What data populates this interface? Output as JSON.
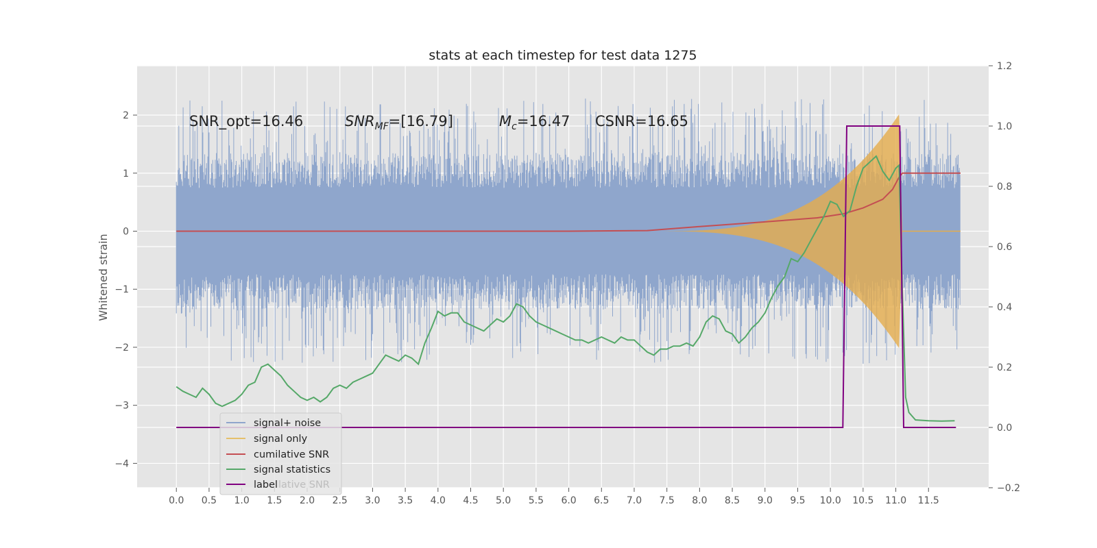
{
  "chart_data": {
    "type": "line",
    "title": "stats at each timestep for test data 1275",
    "xlabel": "",
    "ylabel": "Whitened strain",
    "y2label": "",
    "xlim": [
      -0.6,
      12.42
    ],
    "ylim": [
      -4.42,
      2.85
    ],
    "y2lim": [
      -0.2,
      1.2
    ],
    "x_ticks": [
      0.0,
      0.5,
      1.0,
      1.5,
      2.0,
      2.5,
      3.0,
      3.5,
      4.0,
      4.5,
      5.0,
      5.5,
      6.0,
      6.5,
      7.0,
      7.5,
      8.0,
      8.5,
      9.0,
      9.5,
      10.0,
      10.5,
      11.0,
      11.5
    ],
    "x_tick_labels": [
      "0.0",
      "0.5",
      "1.0",
      "1.5",
      "2.0",
      "2.5",
      "3.0",
      "3.5",
      "4.0",
      "4.5",
      "5.0",
      "5.5",
      "6.0",
      "6.5",
      "7.0",
      "7.5",
      "8.0",
      "8.5",
      "9.0",
      "9.5",
      "10.0",
      "10.5",
      "11.0",
      "11.5"
    ],
    "y_ticks": [
      2,
      1,
      0,
      -1,
      -2,
      -3,
      -4
    ],
    "y_tick_labels": [
      "2",
      "1",
      "0",
      "−1",
      "−2",
      "−3",
      "−4"
    ],
    "y2_ticks": [
      1.2,
      1.0,
      0.8,
      0.6,
      0.4,
      0.2,
      0.0,
      -0.2
    ],
    "y2_tick_labels": [
      "1.2",
      "1.0",
      "0.8",
      "0.6",
      "0.4",
      "0.2",
      "0.0",
      "−0.2"
    ],
    "grid": true,
    "legend_position": "lower-left",
    "annotations": {
      "snr_opt": "SNR_opt=16.46",
      "snr_mf_main": "SNR",
      "snr_mf_sub": "MF",
      "snr_mf_value": "=[16.79]",
      "mc_main": "M",
      "mc_sub": "c",
      "mc_value": "=16.47",
      "csnr": "CSNR=16.65"
    },
    "legend_entries": [
      "signal+ noise",
      "signal only",
      "cumilative SNR",
      "signal statistics",
      "label"
    ],
    "legend_ghost_text": "lative SNR",
    "noise": {
      "start": 0.0,
      "end": 11.99,
      "base_amp": 1.35,
      "spike_amp": 2.2,
      "color": "#8fa6cc"
    },
    "signal_only": {
      "start": 7.2,
      "end": 11.1,
      "peak_amp": 2.1,
      "color": "#e5ac4c"
    },
    "series": [
      {
        "name": "cumilative SNR",
        "axis": "left",
        "color": "#c44e52",
        "x": [
          0.0,
          6.0,
          7.2,
          8.0,
          9.0,
          9.8,
          10.2,
          10.5,
          10.8,
          10.95,
          11.05,
          11.1,
          11.5,
          11.99
        ],
        "y": [
          0.0,
          0.0,
          0.01,
          0.08,
          0.16,
          0.23,
          0.3,
          0.4,
          0.55,
          0.72,
          0.93,
          1.0,
          1.0,
          1.0
        ]
      },
      {
        "name": "signal statistics",
        "axis": "right",
        "color": "#55a868",
        "x": [
          0.0,
          0.1,
          0.2,
          0.3,
          0.4,
          0.5,
          0.6,
          0.7,
          0.8,
          0.9,
          1.0,
          1.1,
          1.2,
          1.3,
          1.4,
          1.5,
          1.6,
          1.7,
          1.8,
          1.9,
          2.0,
          2.1,
          2.2,
          2.3,
          2.4,
          2.5,
          2.6,
          2.7,
          2.8,
          2.9,
          3.0,
          3.1,
          3.2,
          3.3,
          3.4,
          3.5,
          3.6,
          3.7,
          3.8,
          3.9,
          4.0,
          4.1,
          4.2,
          4.3,
          4.4,
          4.5,
          4.6,
          4.7,
          4.8,
          4.9,
          5.0,
          5.1,
          5.2,
          5.3,
          5.4,
          5.5,
          5.6,
          5.7,
          5.8,
          5.9,
          6.0,
          6.1,
          6.2,
          6.3,
          6.4,
          6.5,
          6.6,
          6.7,
          6.8,
          6.9,
          7.0,
          7.1,
          7.2,
          7.3,
          7.4,
          7.5,
          7.6,
          7.7,
          7.8,
          7.9,
          8.0,
          8.1,
          8.2,
          8.3,
          8.4,
          8.5,
          8.6,
          8.7,
          8.8,
          8.9,
          9.0,
          9.1,
          9.2,
          9.3,
          9.4,
          9.5,
          9.6,
          9.7,
          9.8,
          9.9,
          10.0,
          10.1,
          10.2,
          10.3,
          10.4,
          10.5,
          10.6,
          10.7,
          10.8,
          10.9,
          11.0,
          11.05,
          11.1,
          11.15,
          11.2,
          11.3,
          11.5,
          11.7,
          11.9
        ],
        "y": [
          0.135,
          0.12,
          0.11,
          0.1,
          0.13,
          0.11,
          0.08,
          0.07,
          0.08,
          0.09,
          0.11,
          0.14,
          0.15,
          0.2,
          0.21,
          0.19,
          0.17,
          0.14,
          0.12,
          0.1,
          0.09,
          0.1,
          0.085,
          0.1,
          0.13,
          0.14,
          0.13,
          0.15,
          0.16,
          0.17,
          0.18,
          0.21,
          0.24,
          0.23,
          0.22,
          0.24,
          0.23,
          0.21,
          0.28,
          0.33,
          0.385,
          0.37,
          0.38,
          0.38,
          0.35,
          0.34,
          0.33,
          0.32,
          0.34,
          0.36,
          0.35,
          0.37,
          0.41,
          0.4,
          0.37,
          0.35,
          0.34,
          0.33,
          0.32,
          0.31,
          0.3,
          0.29,
          0.29,
          0.28,
          0.29,
          0.3,
          0.29,
          0.28,
          0.3,
          0.29,
          0.29,
          0.27,
          0.25,
          0.24,
          0.26,
          0.26,
          0.27,
          0.27,
          0.28,
          0.27,
          0.3,
          0.35,
          0.37,
          0.36,
          0.32,
          0.31,
          0.28,
          0.3,
          0.33,
          0.35,
          0.38,
          0.43,
          0.47,
          0.5,
          0.56,
          0.55,
          0.58,
          0.62,
          0.66,
          0.7,
          0.75,
          0.74,
          0.7,
          0.72,
          0.8,
          0.86,
          0.88,
          0.9,
          0.85,
          0.82,
          0.86,
          0.87,
          0.45,
          0.1,
          0.05,
          0.025,
          0.022,
          0.021,
          0.022
        ]
      },
      {
        "name": "label",
        "axis": "right",
        "color": "#800080",
        "x": [
          0.0,
          10.19,
          10.25,
          11.06,
          11.12,
          11.92
        ],
        "y": [
          0.0,
          0.0,
          1.0,
          1.0,
          0.0,
          0.0
        ]
      }
    ]
  }
}
